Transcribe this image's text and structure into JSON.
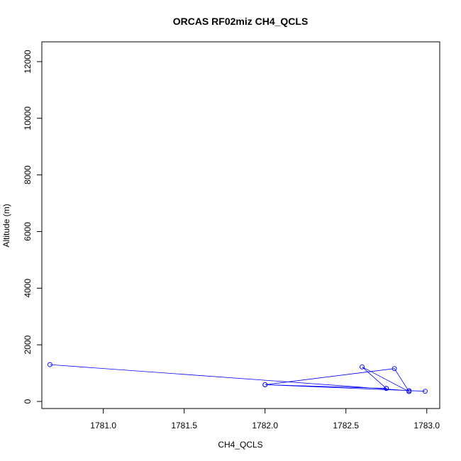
{
  "chart_data": {
    "type": "line",
    "title": "ORCAS RF02miz CH4_QCLS",
    "xlabel": "CH4_QCLS",
    "ylabel": "Altitude (m)",
    "xlim": [
      1780.62,
      1783.08
    ],
    "ylim": [
      -250,
      12700
    ],
    "xticks": [
      1781.0,
      1781.5,
      1782.0,
      1782.5,
      1783.0
    ],
    "xtick_labels": [
      "1781.0",
      "1781.5",
      "1782.0",
      "1782.5",
      "1783.0"
    ],
    "yticks": [
      0,
      2000,
      4000,
      6000,
      8000,
      10000,
      12000
    ],
    "ytick_labels": [
      "0",
      "2000",
      "4000",
      "6000",
      "8000",
      "10000",
      "12000"
    ],
    "series": [
      {
        "color": "#0000ff",
        "points": [
          {
            "x": 1780.67,
            "y": 1300
          },
          {
            "x": 1782.89,
            "y": 380
          },
          {
            "x": 1782.99,
            "y": 360
          },
          {
            "x": 1782.0,
            "y": 590
          },
          {
            "x": 1782.75,
            "y": 460
          },
          {
            "x": 1782.6,
            "y": 1220
          },
          {
            "x": 1782.89,
            "y": 350
          },
          {
            "x": 1782.8,
            "y": 1160
          },
          {
            "x": 1782.0,
            "y": 590
          },
          {
            "x": 1782.75,
            "y": 460
          }
        ]
      }
    ]
  }
}
